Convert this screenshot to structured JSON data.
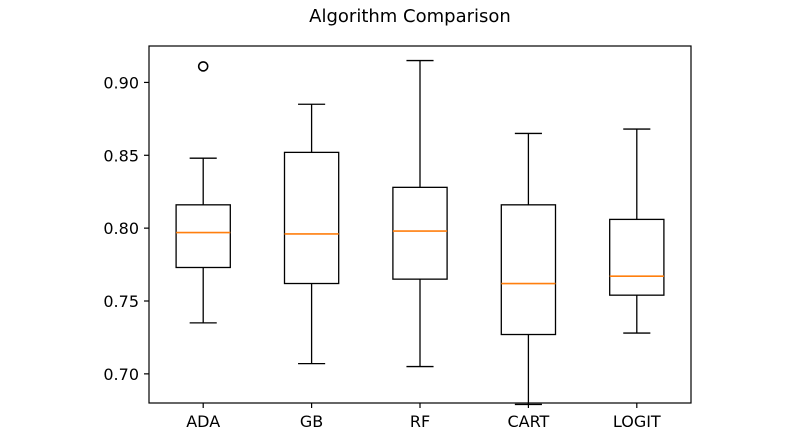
{
  "chart_data": {
    "type": "box",
    "title": "Algorithm Comparison",
    "xlabel": "",
    "ylabel": "",
    "ylim": [
      0.68,
      0.925
    ],
    "yticks": [
      0.7,
      0.75,
      0.8,
      0.85,
      0.9
    ],
    "ytick_labels": [
      "0.70",
      "0.75",
      "0.80",
      "0.85",
      "0.90"
    ],
    "categories": [
      "ADA",
      "GB",
      "RF",
      "CART",
      "LOGIT"
    ],
    "boxes": [
      {
        "label": "ADA",
        "whislo": 0.735,
        "q1": 0.773,
        "median": 0.797,
        "q3": 0.816,
        "whishi": 0.848,
        "fliers": [
          0.911
        ]
      },
      {
        "label": "GB",
        "whislo": 0.707,
        "q1": 0.762,
        "median": 0.796,
        "q3": 0.852,
        "whishi": 0.885,
        "fliers": []
      },
      {
        "label": "RF",
        "whislo": 0.705,
        "q1": 0.765,
        "median": 0.798,
        "q3": 0.828,
        "whishi": 0.915,
        "fliers": []
      },
      {
        "label": "CART",
        "whislo": 0.679,
        "q1": 0.727,
        "median": 0.762,
        "q3": 0.816,
        "whishi": 0.865,
        "fliers": []
      },
      {
        "label": "LOGIT",
        "whislo": 0.728,
        "q1": 0.754,
        "median": 0.767,
        "q3": 0.806,
        "whishi": 0.868,
        "fliers": []
      }
    ],
    "colors": {
      "median": "#ff7f0e",
      "box": "#000000"
    },
    "grid": false,
    "legend": "none"
  }
}
